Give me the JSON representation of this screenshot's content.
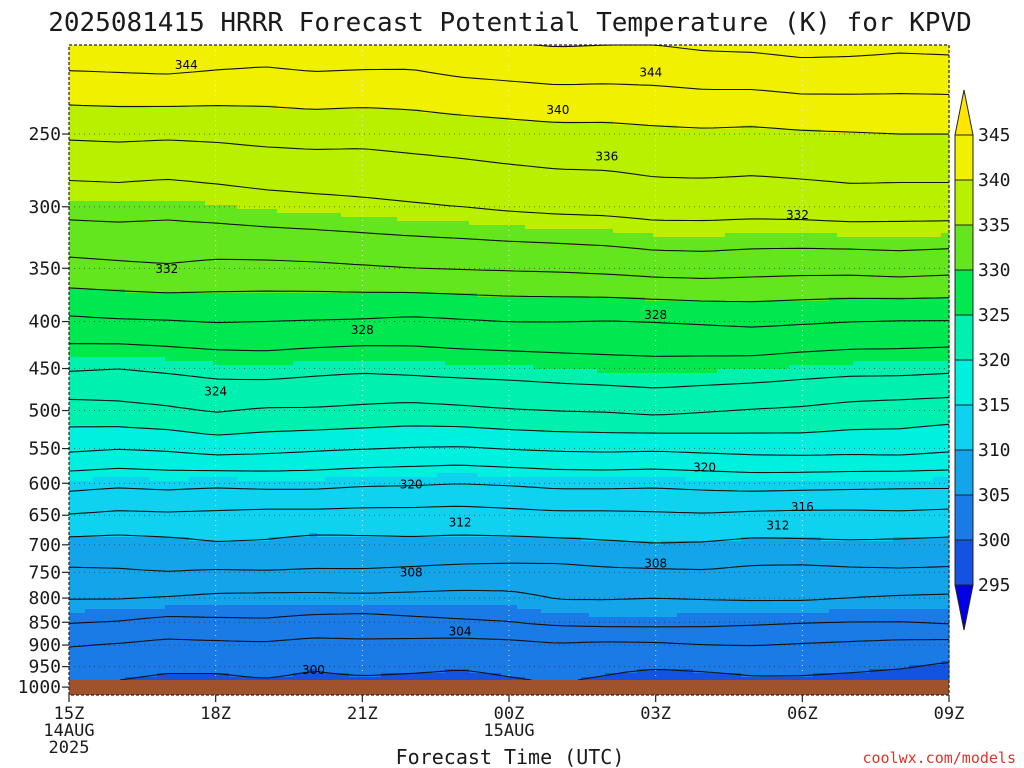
{
  "chart_data": {
    "type": "contour",
    "title": "2025081415 HRRR Forecast Potential Temperature (K) for KPVD",
    "xlabel": "Forecast Time (UTC)",
    "credit": "coolwx.com/models",
    "y_axis": {
      "quantity": "pressure",
      "ticks": [
        250,
        300,
        350,
        400,
        450,
        500,
        550,
        600,
        650,
        700,
        750,
        800,
        850,
        900,
        950,
        1000
      ],
      "range": [
        1020,
        200
      ],
      "grid": true
    },
    "x_axis": {
      "forecast_hours": [
        0,
        18
      ],
      "ticks": [
        {
          "hour": 0,
          "lines": [
            "15Z",
            "14AUG",
            "2025"
          ]
        },
        {
          "hour": 3,
          "lines": [
            "18Z"
          ]
        },
        {
          "hour": 6,
          "lines": [
            "21Z"
          ]
        },
        {
          "hour": 9,
          "lines": [
            "00Z",
            "15AUG"
          ]
        },
        {
          "hour": 12,
          "lines": [
            "03Z"
          ]
        },
        {
          "hour": 15,
          "lines": [
            "06Z"
          ]
        },
        {
          "hour": 18,
          "lines": [
            "09Z"
          ]
        }
      ],
      "grid": true
    },
    "colorbar": {
      "levels": [
        295,
        300,
        305,
        310,
        315,
        320,
        325,
        330,
        335,
        340,
        345
      ],
      "colors": [
        "#0000e6",
        "#1452e0",
        "#1a7ae6",
        "#13a4ea",
        "#0fd2f0",
        "#00f0e0",
        "#00f0b0",
        "#00e850",
        "#64e61e",
        "#b8f000",
        "#f0f000",
        "#ffe600"
      ]
    },
    "ground_color": "#a0522d",
    "contour_interval": 2,
    "profiles": [
      {
        "p": 1000,
        "v": [
          299.8,
          299.7,
          299.4,
          299.6,
          299.7,
          299.6,
          299.5,
          299.4,
          299.4,
          299.7,
          299.9,
          299.6,
          299.1,
          299.1,
          299.4,
          299.5,
          299.3,
          299.1,
          299.0
        ]
      },
      {
        "p": 950,
        "v": [
          300.8,
          300.6,
          300.3,
          300.2,
          300.4,
          300.1,
          300.4,
          300.3,
          300.1,
          300.3,
          300.5,
          300.3,
          300.1,
          300.3,
          300.5,
          300.4,
          300.3,
          300.1,
          299.7
        ]
      },
      {
        "p": 900,
        "v": [
          302.1,
          301.8,
          301.5,
          301.6,
          301.7,
          301.4,
          301.6,
          301.4,
          301.2,
          301.4,
          301.7,
          301.5,
          301.6,
          301.9,
          302.0,
          301.8,
          301.6,
          301.4,
          301.3
        ]
      },
      {
        "p": 850,
        "v": [
          304.1,
          303.9,
          303.4,
          303.6,
          303.7,
          303.3,
          303.1,
          303.5,
          303.8,
          304.0,
          304.4,
          304.6,
          304.6,
          304.5,
          304.3,
          304.1,
          304.0,
          304.0,
          304.2
        ]
      },
      {
        "p": 800,
        "v": [
          306.1,
          306.1,
          305.9,
          305.6,
          305.5,
          305.5,
          305.6,
          305.5,
          305.4,
          305.5,
          306.1,
          306.1,
          306.0,
          306.1,
          306.2,
          306.2,
          306.0,
          305.8,
          305.7
        ]
      },
      {
        "p": 750,
        "v": [
          307.7,
          307.8,
          308.0,
          307.8,
          307.9,
          307.8,
          307.8,
          307.6,
          307.4,
          307.3,
          307.3,
          307.6,
          307.7,
          307.8,
          307.5,
          307.4,
          307.6,
          307.7,
          307.6
        ]
      },
      {
        "p": 700,
        "v": [
          309.3,
          309.2,
          309.4,
          309.8,
          309.7,
          309.3,
          309.4,
          309.5,
          309.4,
          309.4,
          309.5,
          309.7,
          309.9,
          309.8,
          309.5,
          309.6,
          309.7,
          309.6,
          309.5
        ]
      },
      {
        "p": 650,
        "v": [
          311.9,
          311.6,
          311.7,
          311.6,
          311.4,
          311.4,
          311.3,
          311.3,
          311.2,
          311.4,
          311.6,
          311.6,
          311.7,
          311.8,
          311.6,
          311.5,
          311.5,
          311.6,
          311.4
        ]
      },
      {
        "p": 600,
        "v": [
          314.7,
          314.4,
          314.6,
          314.4,
          314.6,
          314.6,
          314.3,
          314.2,
          314.0,
          314.2,
          314.5,
          314.5,
          314.4,
          314.6,
          314.8,
          314.7,
          314.6,
          314.5,
          314.5
        ]
      },
      {
        "p": 550,
        "v": [
          318.4,
          318.1,
          318.3,
          318.8,
          318.6,
          318.3,
          318.1,
          317.9,
          317.8,
          318.1,
          318.3,
          318.4,
          318.3,
          318.5,
          318.7,
          318.8,
          318.7,
          318.8,
          318.4
        ]
      },
      {
        "p": 500,
        "v": [
          321.2,
          321.4,
          321.7,
          322.2,
          321.8,
          321.8,
          321.6,
          321.4,
          321.6,
          321.9,
          322.1,
          322.2,
          322.5,
          322.2,
          321.9,
          321.7,
          321.3,
          321.1,
          320.9
        ]
      },
      {
        "p": 450,
        "v": [
          324.2,
          324.0,
          324.3,
          324.6,
          324.8,
          324.5,
          324.3,
          324.5,
          324.7,
          324.8,
          325.0,
          325.2,
          325.3,
          325.2,
          325.1,
          324.8,
          324.6,
          324.6,
          324.4
        ]
      },
      {
        "p": 400,
        "v": [
          327.6,
          327.8,
          327.9,
          328.1,
          328.0,
          327.9,
          327.8,
          327.6,
          327.8,
          328.0,
          328.0,
          327.9,
          328.0,
          328.2,
          328.4,
          328.2,
          328.0,
          327.9,
          327.9
        ]
      },
      {
        "p": 350,
        "v": [
          331.4,
          331.6,
          331.8,
          331.5,
          331.5,
          331.6,
          331.8,
          332.0,
          332.1,
          332.2,
          332.3,
          332.5,
          332.8,
          332.9,
          332.7,
          332.6,
          332.6,
          332.8,
          332.6
        ]
      },
      {
        "p": 300,
        "v": [
          334.7,
          334.8,
          334.6,
          334.9,
          335.2,
          335.4,
          335.6,
          335.8,
          336.0,
          336.3,
          336.5,
          336.6,
          336.9,
          336.9,
          336.8,
          336.9,
          337.1,
          337.0,
          337.0
        ]
      },
      {
        "p": 250,
        "v": [
          338.3,
          338.4,
          338.3,
          338.4,
          338.6,
          338.7,
          338.6,
          338.8,
          339.0,
          339.2,
          339.4,
          339.4,
          339.6,
          339.7,
          339.6,
          339.8,
          339.9,
          340.0,
          340.0
        ]
      },
      {
        "p": 200,
        "v": [
          343.5,
          343.6,
          343.8,
          343.4,
          343.1,
          343.4,
          343.3,
          343.2,
          343.7,
          343.9,
          344.1,
          344.0,
          344.0,
          344.3,
          344.4,
          344.7,
          344.6,
          344.4,
          344.5
        ]
      }
    ],
    "contour_labels": [
      {
        "value": "344",
        "hour": 2.4,
        "p": 210
      },
      {
        "value": "344",
        "hour": 11.9,
        "p": 214
      },
      {
        "value": "340",
        "hour": 10.0,
        "p": 235
      },
      {
        "value": "336",
        "hour": 11.0,
        "p": 264
      },
      {
        "value": "332",
        "hour": 14.9,
        "p": 306
      },
      {
        "value": "332",
        "hour": 2.0,
        "p": 350
      },
      {
        "value": "328",
        "hour": 12.0,
        "p": 393
      },
      {
        "value": "328",
        "hour": 6.0,
        "p": 408
      },
      {
        "value": "324",
        "hour": 3.0,
        "p": 476
      },
      {
        "value": "320",
        "hour": 13.0,
        "p": 576
      },
      {
        "value": "320",
        "hour": 7.0,
        "p": 601
      },
      {
        "value": "316",
        "hour": 15.0,
        "p": 636
      },
      {
        "value": "312",
        "hour": 8.0,
        "p": 661
      },
      {
        "value": "312",
        "hour": 14.5,
        "p": 666
      },
      {
        "value": "308",
        "hour": 12.0,
        "p": 733
      },
      {
        "value": "308",
        "hour": 7.0,
        "p": 749
      },
      {
        "value": "304",
        "hour": 8.0,
        "p": 869
      },
      {
        "value": "300",
        "hour": 5.0,
        "p": 957
      }
    ]
  }
}
